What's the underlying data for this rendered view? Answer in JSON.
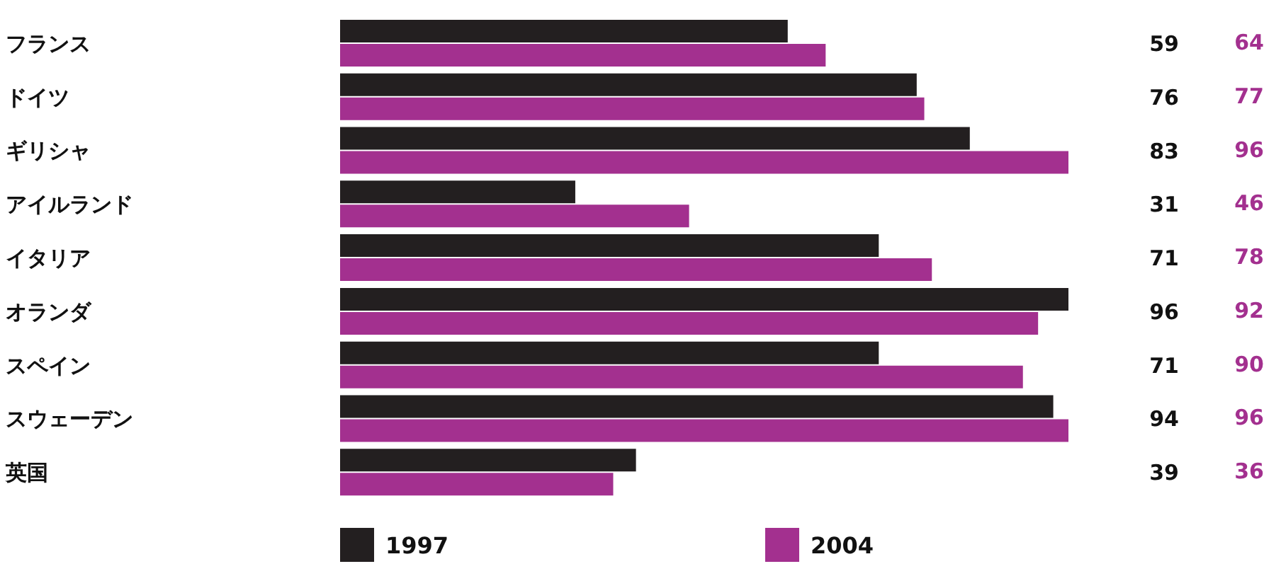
{
  "chart_data": {
    "type": "bar",
    "orientation": "horizontal",
    "categories": [
      "フランス",
      "ドイツ",
      "ギリシャ",
      "アイルランド",
      "イタリア",
      "オランダ",
      "スペイン",
      "スウェーデン",
      "英国"
    ],
    "series": [
      {
        "name": "1997",
        "color": "#231f20",
        "values": [
          59,
          76,
          83,
          31,
          71,
          96,
          71,
          94,
          39
        ]
      },
      {
        "name": "2004",
        "color": "#a3308f",
        "values": [
          64,
          77,
          96,
          46,
          78,
          92,
          90,
          96,
          36
        ]
      }
    ],
    "data_labels": true,
    "legend": "bottom",
    "grid": false
  }
}
